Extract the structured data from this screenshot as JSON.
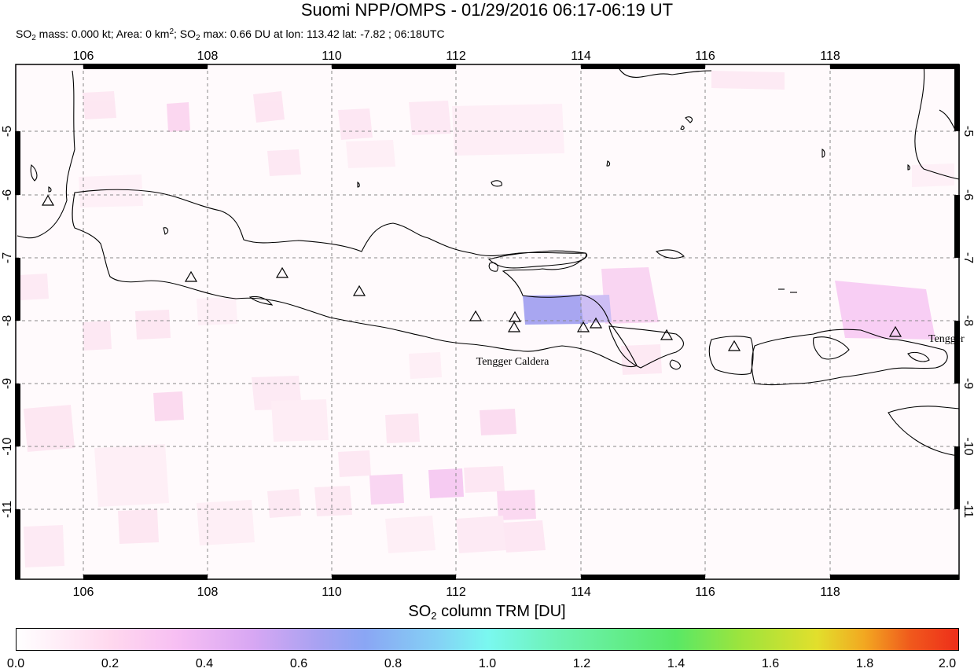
{
  "header": {
    "title": "Suomi NPP/OMPS - 01/29/2016 06:17-06:19 UT",
    "stats": {
      "mass_prefix": "SO",
      "mass_label": " mass: 0.000 kt; Area: 0 km",
      "area_exp": "2",
      "max_prefix": "; SO",
      "max_label": " max: 0.66 DU at lon: 113.42 lat: -7.82 ; 06:18UTC",
      "sub2": "2"
    }
  },
  "map": {
    "lon_ticks": [
      "106",
      "108",
      "110",
      "112",
      "114",
      "116",
      "118"
    ],
    "lat_ticks": [
      "-5",
      "-6",
      "-7",
      "-8",
      "-9",
      "-10",
      "-11"
    ],
    "volcano_labels": [
      "Tengger Caldera",
      "Tengger"
    ],
    "colors": {
      "grid": "#888888",
      "coast": "#000000",
      "frame": "#000000",
      "pixel_low": "#ffd8ee",
      "pixel_mid": "#f7bff3",
      "pixel_high": "#a8a2f2"
    }
  },
  "colorbar": {
    "title_prefix": "SO",
    "title_sub": "2",
    "title_suffix": " column TRM [DU]",
    "ticks": [
      "0.0",
      "0.2",
      "0.4",
      "0.6",
      "0.8",
      "1.0",
      "1.2",
      "1.4",
      "1.6",
      "1.8",
      "2.0"
    ]
  }
}
